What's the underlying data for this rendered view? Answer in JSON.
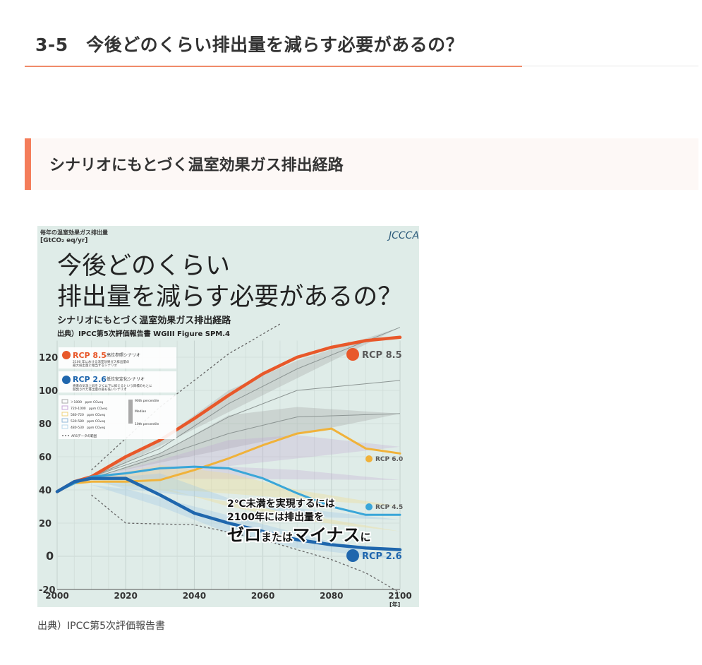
{
  "page": {
    "heading": "3-5　今後どのくらい排出量を減らす必要があるの？",
    "subheading": "シナリオにもとづく温室効果ガス排出経路",
    "caption": "出典）IPCC第5次評価報告書"
  },
  "figure": {
    "logo": "JCCCA",
    "title_line1": "今後どのくらい",
    "title_line2": "排出量を減らす必要があるの？",
    "subtitle": "シナリオにもとづく温室効果ガス排出経路",
    "source": "出典）IPCC第5次評価報告書 WGIII Figure SPM.4",
    "unit_line1": "毎年の温室効果ガス排出量",
    "unit_line2": "[GtCO₂ eq/yr]",
    "x_unit": "[年]",
    "legend_rcp85_name": "RCP 8.5",
    "legend_rcp85_title": "高位参照シナリオ",
    "legend_rcp85_desc1": "2100 年における温室効果ガス排出量の",
    "legend_rcp85_desc2": "最大排出量に相当するシナリオ",
    "legend_rcp26_name": "RCP 2.6",
    "legend_rcp26_title": "低位安定化シナリオ",
    "legend_rcp26_desc1": "将来の気温上昇を 2℃以下に抑えるという目標のもとに",
    "legend_rcp26_desc2": "開発された排出量の最も低いシナリオ",
    "legend_bands": [
      "＞1000　ppm CO₂eq",
      "720-1000　ppm CO₂eq",
      "580-720　ppm CO₂eq",
      "530-580　ppm CO₂eq",
      "480-530　ppm CO₂eq"
    ],
    "legend_ar5": "AR5データの範囲",
    "legend_p90": "90th percentile",
    "legend_median": "Median",
    "legend_p10": "10th percentile",
    "annotation_line1": "2℃未満を実現するには",
    "annotation_line2": "2100年には排出量を",
    "annotation_line3_a": "ゼロ",
    "annotation_line3_b": "または",
    "annotation_line3_c": "マイナス",
    "annotation_line3_d": "に",
    "colors": {
      "background": "#dfece8",
      "rcp85": "#e8582a",
      "rcp60": "#f0b23a",
      "rcp45": "#3aa6d8",
      "rcp26": "#1f66ad",
      "accent": "#f47d5a"
    }
  },
  "chart_data": {
    "type": "line",
    "title": "",
    "xlabel": "",
    "ylabel": "",
    "xlim": [
      2000,
      2100
    ],
    "ylim": [
      -20,
      140
    ],
    "x_ticks": [
      2000,
      2020,
      2040,
      2060,
      2080,
      2100
    ],
    "y_ticks": [
      -20,
      0,
      20,
      40,
      60,
      80,
      100,
      120
    ],
    "grid": true,
    "legend_position": "left",
    "series": [
      {
        "name": "RCP 8.5",
        "color": "#e8582a",
        "width": 4.5,
        "x": [
          2000,
          2005,
          2010,
          2020,
          2030,
          2040,
          2050,
          2060,
          2070,
          2080,
          2090,
          2100
        ],
        "y": [
          39,
          45,
          48,
          60,
          70,
          83,
          97,
          110,
          120,
          126,
          130,
          132
        ]
      },
      {
        "name": "RCP 6.0",
        "color": "#f0b23a",
        "width": 3,
        "x": [
          2000,
          2005,
          2010,
          2020,
          2030,
          2040,
          2050,
          2060,
          2070,
          2080,
          2090,
          2100
        ],
        "y": [
          39,
          44,
          45,
          45,
          46,
          52,
          59,
          67,
          74,
          77,
          65,
          62
        ]
      },
      {
        "name": "RCP 4.5",
        "color": "#3aa6d8",
        "width": 3,
        "x": [
          2000,
          2005,
          2010,
          2020,
          2030,
          2040,
          2050,
          2060,
          2070,
          2080,
          2090,
          2100
        ],
        "y": [
          39,
          44,
          48,
          50,
          53,
          54,
          53,
          47,
          38,
          30,
          25,
          25
        ]
      },
      {
        "name": "RCP 2.6",
        "color": "#1f66ad",
        "width": 4.5,
        "x": [
          2000,
          2005,
          2010,
          2020,
          2030,
          2040,
          2050,
          2060,
          2070,
          2080,
          2090,
          2100
        ],
        "y": [
          39,
          45,
          47,
          47,
          37,
          26,
          20,
          15,
          10,
          7,
          5,
          4
        ]
      }
    ]
  }
}
